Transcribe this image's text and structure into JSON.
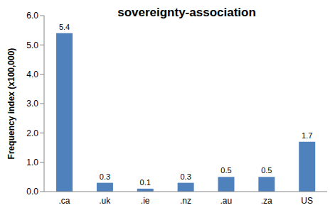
{
  "chart_data": {
    "type": "bar",
    "title": "sovereignty-association",
    "y_label": "Frequency index (x100,000)",
    "categories": [
      ".ca",
      ".uk",
      ".ie",
      ".nz",
      ".au",
      ".za",
      "US"
    ],
    "values": [
      5.4,
      0.3,
      0.1,
      0.3,
      0.5,
      0.5,
      1.7
    ],
    "color": "#4f81bd",
    "ylim": [
      0,
      6
    ],
    "yticks": [
      {
        "value": 0,
        "label": "0.0"
      },
      {
        "value": 1,
        "label": "1.0"
      },
      {
        "value": 2,
        "label": "2.0"
      },
      {
        "value": 3,
        "label": "3.0"
      },
      {
        "value": 4,
        "label": "4.0"
      },
      {
        "value": 5,
        "label": "5.0"
      },
      {
        "value": 6,
        "label": "6.0"
      }
    ],
    "grid": false,
    "data_labels": true
  }
}
